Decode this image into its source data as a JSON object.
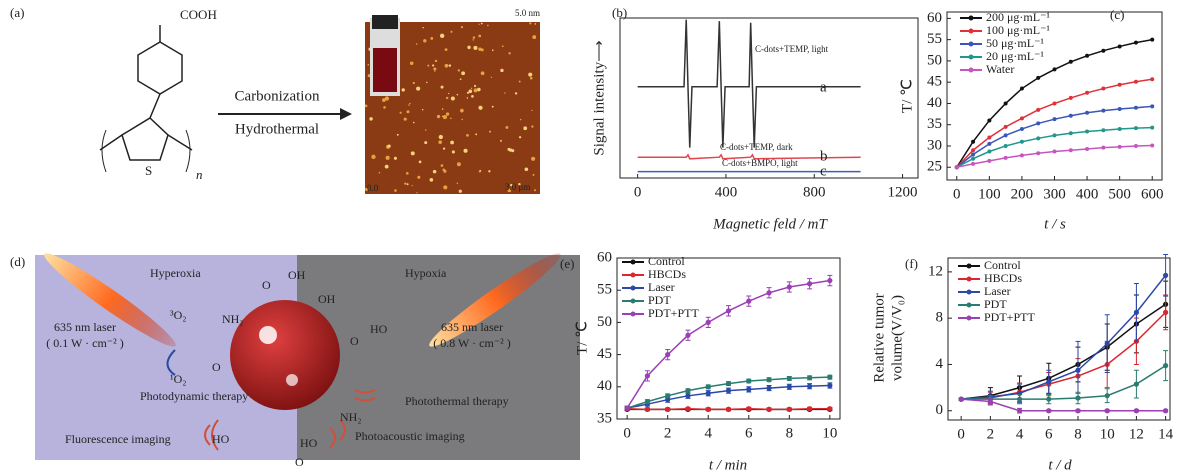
{
  "panel_a": {
    "label": "(a)",
    "cooh": "COOH",
    "sulfur": "S",
    "repeat": "n",
    "arrow_top": "Carbonization",
    "arrow_bottom": "Hydrothermal",
    "scale_max": "5.0 nm",
    "scale_min": "0.0",
    "scale_length": "3.0 μm"
  },
  "panel_d": {
    "label": "(d)",
    "left_zone": "Hyperoxia",
    "right_zone": "Hypoxia",
    "left_laser": [
      "635 nm laser",
      "( 0.1 W · cm⁻² )"
    ],
    "right_laser": [
      "635 nm laser",
      "( 0.8 W · cm⁻² )"
    ],
    "triplet": "³O₂",
    "singlet": "¹O₂",
    "pdt": "Photodynamic therapy",
    "ptt": "Photothermal therapy",
    "fluorescence": "Fluorescence imaging",
    "photoacoustic": "Photoacoustic imaging",
    "groups": [
      "NH₂",
      "OH",
      "O",
      "OH",
      "O",
      "HO",
      "O",
      "HO",
      "NH₂",
      "HO",
      "O"
    ]
  },
  "chart_data": [
    {
      "type": "line",
      "label": "(b)",
      "xlabel": "Magnetic feld / mT",
      "ylabel": "Signal intensity⟶",
      "xlim": [
        -80,
        1270
      ],
      "ylim": [
        0,
        100
      ],
      "xticks": [
        0,
        400,
        800,
        1200
      ],
      "annotations": [
        "C-dots+TEMP, light",
        "C-dots+TEMP, dark",
        "C-dots+BMPO, light"
      ],
      "series": [
        {
          "name": "a",
          "color": "#333333",
          "x": [
            0,
            210,
            220,
            228,
            236,
            246,
            360,
            370,
            378,
            386,
            396,
            505,
            512,
            520,
            528,
            538,
            1010
          ],
          "values": [
            57,
            57,
            99,
            57,
            19,
            57,
            57,
            98,
            57,
            19,
            57,
            57,
            97,
            57,
            19,
            57,
            57
          ]
        },
        {
          "name": "b",
          "color": "#e0474c",
          "x": [
            0,
            220,
            228,
            236,
            370,
            378,
            386,
            512,
            520,
            528,
            1010
          ],
          "values": [
            13,
            13,
            14.5,
            12,
            13,
            14.5,
            12,
            13,
            14.5,
            12,
            13
          ]
        },
        {
          "name": "c",
          "color": "#3d5fb0",
          "x": [
            0,
            1010
          ],
          "values": [
            4,
            4
          ]
        }
      ]
    },
    {
      "type": "line",
      "label": "(c)",
      "xlabel": "t / s",
      "ylabel": "T/ ℃",
      "xlim": [
        -30,
        630
      ],
      "ylim": [
        22,
        61.5
      ],
      "xticks": [
        0,
        100,
        200,
        300,
        400,
        500,
        600
      ],
      "yticks": [
        25,
        30,
        35,
        40,
        45,
        50,
        55,
        60
      ],
      "legend": "upper left",
      "x": [
        0,
        50,
        100,
        150,
        200,
        250,
        300,
        350,
        400,
        450,
        500,
        550,
        600
      ],
      "series": [
        {
          "name": "200 μg·mL⁻¹",
          "color": "#111111",
          "values": [
            25,
            31,
            36,
            40,
            43.5,
            46,
            48,
            49.8,
            51.2,
            52.4,
            53.4,
            54.3,
            55
          ]
        },
        {
          "name": "100 μg·mL⁻¹",
          "color": "#e0313a",
          "values": [
            25,
            29,
            32,
            34.5,
            36.5,
            38.5,
            40,
            41.3,
            42.5,
            43.5,
            44.4,
            45.1,
            45.7
          ]
        },
        {
          "name": "50 μg·mL⁻¹",
          "color": "#3a57b8",
          "values": [
            25,
            28,
            30.5,
            32.5,
            34,
            35.3,
            36.3,
            37.1,
            37.8,
            38.3,
            38.7,
            39,
            39.3
          ]
        },
        {
          "name": "20 μg·mL⁻¹",
          "color": "#21968e",
          "values": [
            25,
            27,
            28.7,
            30,
            31,
            31.8,
            32.5,
            33,
            33.4,
            33.7,
            34,
            34.2,
            34.3
          ]
        },
        {
          "name": "Water",
          "color": "#c755c0",
          "values": [
            25,
            25.8,
            26.5,
            27.2,
            27.8,
            28.3,
            28.7,
            29,
            29.3,
            29.6,
            29.8,
            30,
            30.1
          ]
        }
      ]
    },
    {
      "type": "line",
      "label": "(e)",
      "xlabel": "t / min",
      "ylabel": "T/ ℃",
      "xlim": [
        -0.5,
        10.5
      ],
      "ylim": [
        35,
        60
      ],
      "xticks": [
        0,
        2,
        4,
        6,
        8,
        10
      ],
      "yticks": [
        35,
        40,
        45,
        50,
        55,
        60
      ],
      "legend": "upper left",
      "x": [
        0,
        1,
        2,
        3,
        4,
        5,
        6,
        7,
        8,
        9,
        10
      ],
      "series": [
        {
          "name": "Control",
          "color": "#111111",
          "values": [
            36.5,
            36.5,
            36.5,
            36.5,
            36.5,
            36.5,
            36.5,
            36.5,
            36.5,
            36.5,
            36.5
          ],
          "errors": [
            0.2,
            0.2,
            0.2,
            0.2,
            0.2,
            0.2,
            0.2,
            0.2,
            0.2,
            0.2,
            0.2
          ]
        },
        {
          "name": "HBCDs",
          "color": "#d8272f",
          "values": [
            36.6,
            36.5,
            36.5,
            36.6,
            36.5,
            36.5,
            36.6,
            36.5,
            36.5,
            36.6,
            36.6
          ],
          "errors": [
            0.2,
            0.2,
            0.2,
            0.2,
            0.2,
            0.2,
            0.2,
            0.2,
            0.2,
            0.2,
            0.2
          ]
        },
        {
          "name": "Laser",
          "color": "#2c49a8",
          "values": [
            36.7,
            37.3,
            38,
            38.6,
            39,
            39.4,
            39.6,
            39.8,
            40,
            40.1,
            40.2
          ],
          "errors": [
            0.3,
            0.3,
            0.4,
            0.4,
            0.4,
            0.4,
            0.4,
            0.4,
            0.4,
            0.4,
            0.4
          ]
        },
        {
          "name": "PDT",
          "color": "#2a7c70",
          "values": [
            36.7,
            37.7,
            38.6,
            39.4,
            40,
            40.5,
            40.9,
            41.1,
            41.3,
            41.4,
            41.5
          ],
          "errors": [
            0.3,
            0.3,
            0.3,
            0.3,
            0.3,
            0.3,
            0.3,
            0.3,
            0.3,
            0.3,
            0.3
          ]
        },
        {
          "name": "PDT+PTT",
          "color": "#9b3fb5",
          "values": [
            36.7,
            41.7,
            45,
            48,
            50,
            51.8,
            53.3,
            54.6,
            55.5,
            56,
            56.5
          ],
          "errors": [
            0.3,
            0.8,
            0.8,
            0.8,
            0.8,
            0.8,
            0.8,
            0.8,
            0.8,
            0.8,
            0.8
          ]
        }
      ]
    },
    {
      "type": "line",
      "label": "(f)",
      "xlabel": "t / d",
      "ylabel": [
        "Relative tumor",
        "volume(V/V₀)"
      ],
      "xlim": [
        -0.9,
        14.3
      ],
      "ylim": [
        -0.8,
        13.2
      ],
      "xticks": [
        0,
        2,
        4,
        6,
        8,
        10,
        12,
        14
      ],
      "yticks": [
        0,
        4,
        8,
        12
      ],
      "legend": "upper left",
      "x": [
        0,
        2,
        4,
        6,
        8,
        10,
        12,
        14
      ],
      "series": [
        {
          "name": "Control",
          "color": "#111111",
          "values": [
            1,
            1.3,
            2,
            2.8,
            4,
            5.5,
            7.5,
            9.2
          ],
          "errors": [
            0.1,
            0.7,
            1,
            1.3,
            1.5,
            2,
            2.5,
            2
          ]
        },
        {
          "name": "HBCDs",
          "color": "#d8272f",
          "values": [
            1,
            1.1,
            1.6,
            2.3,
            3,
            4,
            6,
            8.5
          ],
          "errors": [
            0.1,
            0.5,
            0.8,
            1,
            1.5,
            2,
            2,
            1.5
          ]
        },
        {
          "name": "Laser",
          "color": "#2c49a8",
          "values": [
            1,
            1.2,
            1.5,
            2.5,
            3.5,
            5.8,
            8.5,
            11.7
          ],
          "errors": [
            0.1,
            0.5,
            0.8,
            1,
            2.5,
            2.5,
            2.5,
            1.8
          ]
        },
        {
          "name": "PDT",
          "color": "#2a7c70",
          "values": [
            1,
            1,
            1,
            1,
            1.1,
            1.3,
            2.3,
            3.9
          ],
          "errors": [
            0.1,
            0.3,
            0.4,
            0.4,
            0.5,
            0.6,
            1.2,
            1.3
          ]
        },
        {
          "name": "PDT+PTT",
          "color": "#9b3fb5",
          "values": [
            1,
            0.8,
            0,
            0,
            0,
            0,
            0,
            0
          ],
          "errors": [
            0.1,
            0.3,
            0.2,
            0.1,
            0.1,
            0.1,
            0.1,
            0.1
          ]
        }
      ]
    }
  ]
}
